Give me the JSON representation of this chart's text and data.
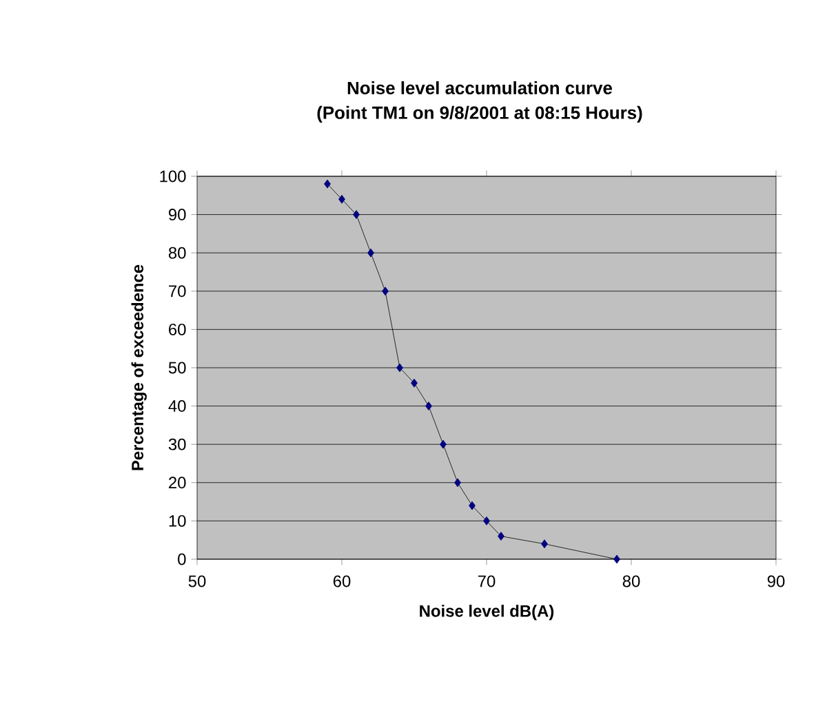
{
  "chart_data": {
    "type": "line",
    "title": "Noise level accumulation curve",
    "subtitle": "(Point TM1 on 9/8/2001 at 08:15 Hours)",
    "xlabel": "Noise level dB(A)",
    "ylabel": "Percentage of exceedence",
    "x": [
      59,
      60,
      61,
      62,
      63,
      64,
      65,
      66,
      67,
      68,
      69,
      70,
      71,
      74,
      79
    ],
    "series": [
      {
        "color": "#000080",
        "values": [
          98,
          94,
          90,
          80,
          70,
          50,
          46,
          40,
          30,
          20,
          14,
          10,
          6,
          4,
          0
        ]
      }
    ],
    "xlim": [
      50,
      90
    ],
    "xticks": [
      50,
      60,
      70,
      80,
      90
    ],
    "ylim": [
      0,
      100
    ],
    "yticks": [
      0,
      10,
      20,
      30,
      40,
      50,
      60,
      70,
      80,
      90,
      100
    ],
    "grid": "y",
    "marker": "diamond",
    "line_style": "solid"
  }
}
